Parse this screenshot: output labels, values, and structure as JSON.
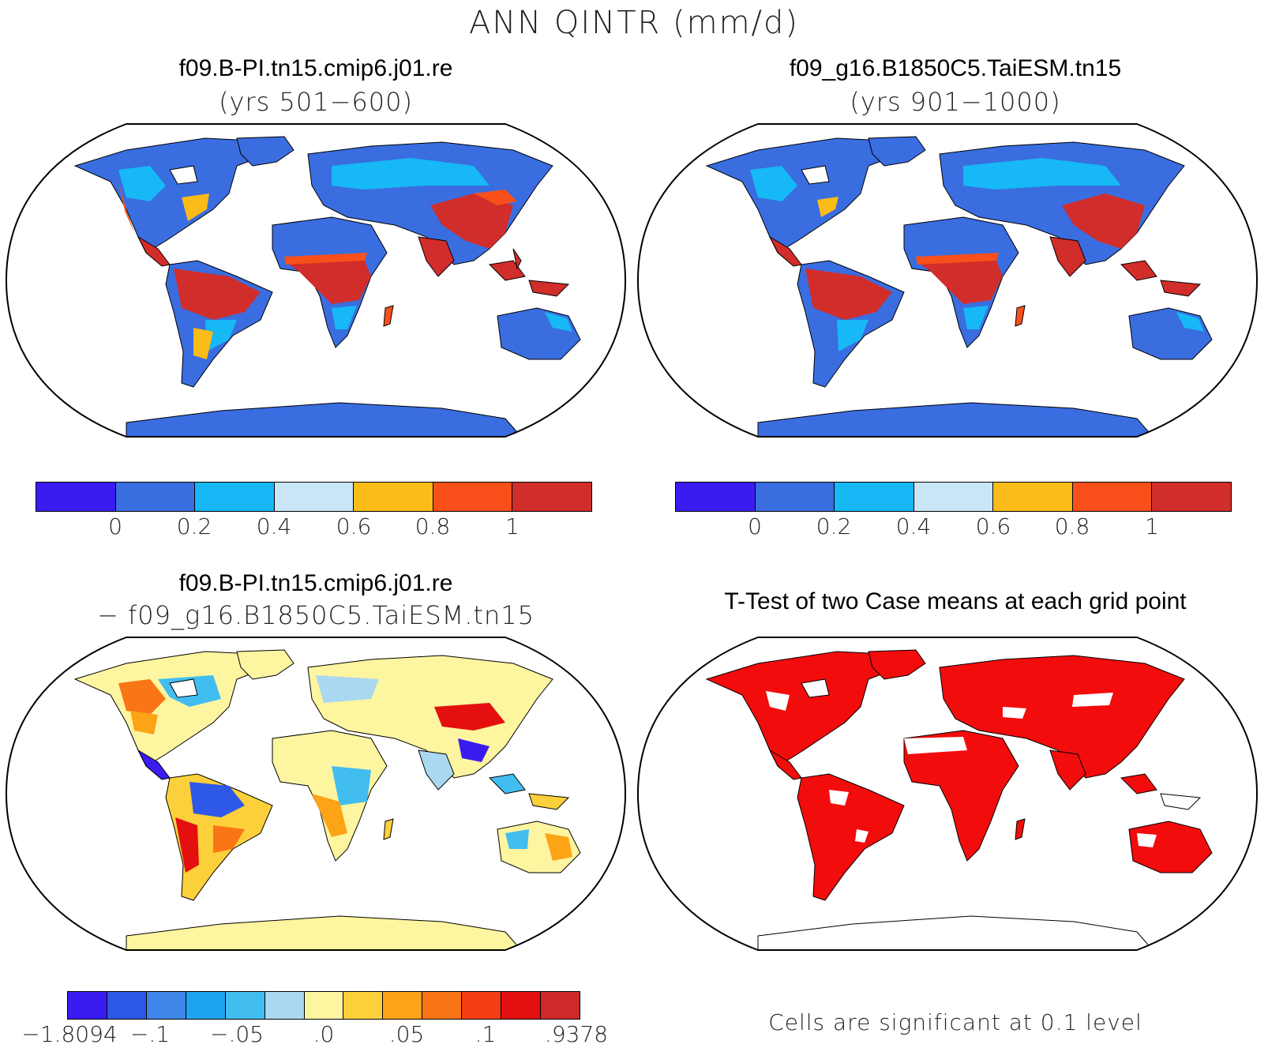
{
  "figure": {
    "title": "ANN QINTR (mm/d)"
  },
  "panels": {
    "top_left": {
      "title": "f09.B-PI.tn15.cmip6.j01.re",
      "subtitle": "(yrs 501−600)"
    },
    "top_right": {
      "title": "f09_g16.B1850C5.TaiESM.tn15",
      "subtitle": "(yrs 901−1000)"
    },
    "bottom_left": {
      "title": "f09.B-PI.tn15.cmip6.j01.re",
      "subtitle": "− f09_g16.B1850C5.TaiESM.tn15"
    },
    "bottom_right": {
      "title": "T-Test of two Case means at each grid point",
      "note": "Cells are significant at 0.1 level"
    }
  },
  "colorbars": {
    "absolute": {
      "colors": [
        "#3b1cf0",
        "#3a6de0",
        "#16b8f5",
        "#c8e6f5",
        "#fbbb18",
        "#f9501b",
        "#d12d2a"
      ],
      "labels": [
        "0",
        "0.2",
        "0.4",
        "0.6",
        "0.8",
        "1"
      ]
    },
    "difference": {
      "colors": [
        "#3b1cf0",
        "#2e58e8",
        "#3f86e8",
        "#1fa4f0",
        "#42bdf0",
        "#aad8f0",
        "#fdf5a0",
        "#fcd03a",
        "#fca316",
        "#f97516",
        "#f53d13",
        "#e40f0f",
        "#cf2a2a"
      ],
      "labels": [
        "−1.8094",
        "−.1",
        "−.05",
        ".0",
        ".05",
        ".1",
        ".9378"
      ]
    }
  },
  "map_colors": {
    "ocean": "#ffffff",
    "ttest_significant": "#f20c0c",
    "coastline": "#000000"
  }
}
